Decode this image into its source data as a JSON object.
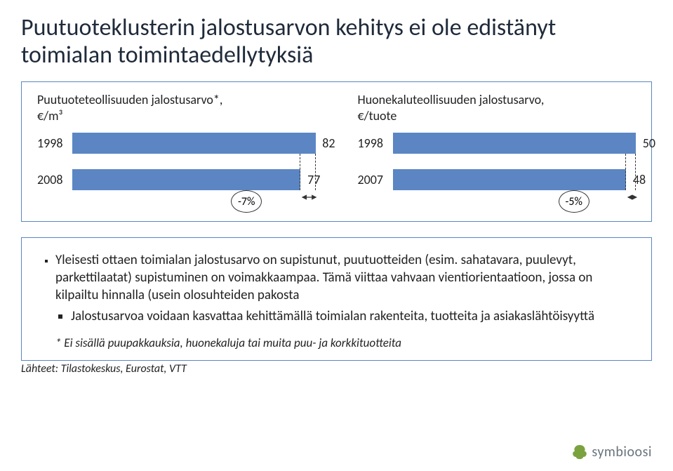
{
  "title": "Puutuoteklusterin jalostusarvon kehitys ei ole edistänyt toimialan toimintaedellytyksiä",
  "chart_left": {
    "header": "Puutuoteteollisuuden jalostusarvo*,\n€/m³",
    "rows": [
      {
        "year": "1998",
        "value": 82,
        "max": 82
      },
      {
        "year": "2008",
        "value": 77,
        "max": 82
      }
    ],
    "delta": "-7%",
    "bar_color": "#5b86c3"
  },
  "chart_right": {
    "header": "Huonekaluteollisuuden jalostusarvo,\n€/tuote",
    "rows": [
      {
        "year": "1998",
        "value": 50,
        "max": 50
      },
      {
        "year": "2007",
        "value": 48,
        "max": 50
      }
    ],
    "delta": "-5%",
    "bar_color": "#5b86c3"
  },
  "bullets": [
    "Yleisesti ottaen toimialan jalostusarvo on supistunut, puutuotteiden (esim. sahatavara, puulevyt, parkettilaatat) supistuminen on voimakkaampaa. Tämä viittaa vahvaan vientiorientaatioon, jossa on kilpailtu hinnalla (usein olosuhteiden pakosta",
    "Jalostusarvoa voidaan kasvattaa kehittämällä toimialan rakenteita, tuotteita ja asiakaslähtöisyyttä"
  ],
  "footnote": "* Ei sisällä puupakkauksia, huonekaluja tai muita puu- ja korkkituotteita",
  "source": "Lähteet: Tilastokeskus, Eurostat, VTT",
  "logo": "symbioosi"
}
